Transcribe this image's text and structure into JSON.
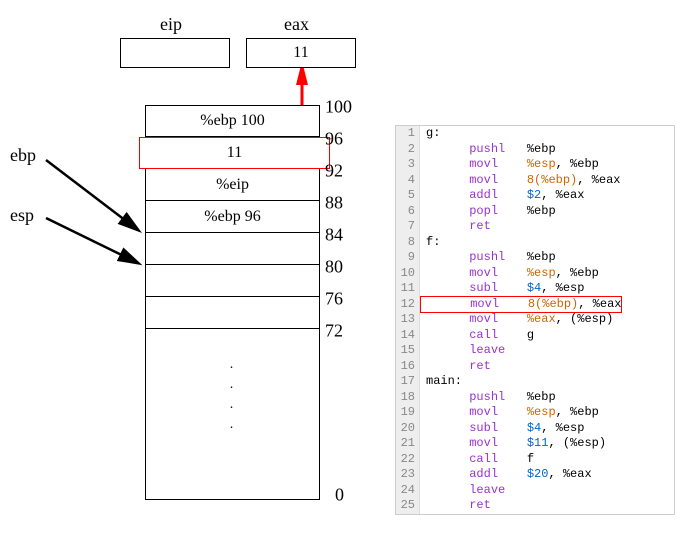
{
  "registers": {
    "eip": {
      "label": "eip",
      "value": ""
    },
    "eax": {
      "label": "eax",
      "value": "11"
    }
  },
  "pointers": {
    "ebp": "ebp",
    "esp": "esp"
  },
  "stack": {
    "addresses": [
      "100",
      "96",
      "92",
      "88",
      "84",
      "80",
      "76",
      "72",
      "0"
    ],
    "cells": [
      {
        "value": "%ebp 100",
        "highlight": false
      },
      {
        "value": "11",
        "highlight": true
      },
      {
        "value": "%eip",
        "highlight": false
      },
      {
        "value": "%ebp 96",
        "highlight": false
      },
      {
        "value": "",
        "highlight": false
      },
      {
        "value": "",
        "highlight": false
      },
      {
        "value": "",
        "highlight": false
      }
    ]
  },
  "code": {
    "highlighted_line": 12,
    "lines": [
      {
        "n": 1,
        "tokens": [
          {
            "t": "g:",
            "c": ""
          }
        ]
      },
      {
        "n": 2,
        "tokens": [
          {
            "t": "      ",
            "c": ""
          },
          {
            "t": "pushl",
            "c": "kw-purple"
          },
          {
            "t": "   %ebp",
            "c": ""
          }
        ]
      },
      {
        "n": 3,
        "tokens": [
          {
            "t": "      ",
            "c": ""
          },
          {
            "t": "movl",
            "c": "kw-purple"
          },
          {
            "t": "    ",
            "c": ""
          },
          {
            "t": "%esp",
            "c": "kw-orange"
          },
          {
            "t": ", %ebp",
            "c": ""
          }
        ]
      },
      {
        "n": 4,
        "tokens": [
          {
            "t": "      ",
            "c": ""
          },
          {
            "t": "movl",
            "c": "kw-purple"
          },
          {
            "t": "    ",
            "c": ""
          },
          {
            "t": "8(%ebp)",
            "c": "kw-orange"
          },
          {
            "t": ", %eax",
            "c": ""
          }
        ]
      },
      {
        "n": 5,
        "tokens": [
          {
            "t": "      ",
            "c": ""
          },
          {
            "t": "addl",
            "c": "kw-purple"
          },
          {
            "t": "    ",
            "c": ""
          },
          {
            "t": "$2",
            "c": "kw-blue"
          },
          {
            "t": ", %eax",
            "c": ""
          }
        ]
      },
      {
        "n": 6,
        "tokens": [
          {
            "t": "      ",
            "c": ""
          },
          {
            "t": "popl",
            "c": "kw-purple"
          },
          {
            "t": "    %ebp",
            "c": ""
          }
        ]
      },
      {
        "n": 7,
        "tokens": [
          {
            "t": "      ",
            "c": ""
          },
          {
            "t": "ret",
            "c": "kw-purple"
          }
        ]
      },
      {
        "n": 8,
        "tokens": [
          {
            "t": "f:",
            "c": ""
          }
        ]
      },
      {
        "n": 9,
        "tokens": [
          {
            "t": "      ",
            "c": ""
          },
          {
            "t": "pushl",
            "c": "kw-purple"
          },
          {
            "t": "   %ebp",
            "c": ""
          }
        ]
      },
      {
        "n": 10,
        "tokens": [
          {
            "t": "      ",
            "c": ""
          },
          {
            "t": "movl",
            "c": "kw-purple"
          },
          {
            "t": "    ",
            "c": ""
          },
          {
            "t": "%esp",
            "c": "kw-orange"
          },
          {
            "t": ", %ebp",
            "c": ""
          }
        ]
      },
      {
        "n": 11,
        "tokens": [
          {
            "t": "      ",
            "c": ""
          },
          {
            "t": "subl",
            "c": "kw-purple"
          },
          {
            "t": "    ",
            "c": ""
          },
          {
            "t": "$4",
            "c": "kw-blue"
          },
          {
            "t": ", %esp",
            "c": ""
          }
        ]
      },
      {
        "n": 12,
        "tokens": [
          {
            "t": "      ",
            "c": ""
          },
          {
            "t": "movl",
            "c": "kw-purple"
          },
          {
            "t": "    ",
            "c": ""
          },
          {
            "t": "8(%ebp)",
            "c": "kw-orange"
          },
          {
            "t": ", %eax",
            "c": ""
          }
        ]
      },
      {
        "n": 13,
        "tokens": [
          {
            "t": "      ",
            "c": ""
          },
          {
            "t": "movl",
            "c": "kw-purple"
          },
          {
            "t": "    ",
            "c": ""
          },
          {
            "t": "%eax",
            "c": "kw-orange"
          },
          {
            "t": ", (%esp)",
            "c": ""
          }
        ]
      },
      {
        "n": 14,
        "tokens": [
          {
            "t": "      ",
            "c": ""
          },
          {
            "t": "call",
            "c": "kw-purple"
          },
          {
            "t": "    g",
            "c": ""
          }
        ]
      },
      {
        "n": 15,
        "tokens": [
          {
            "t": "      ",
            "c": ""
          },
          {
            "t": "leave",
            "c": "kw-purple"
          }
        ]
      },
      {
        "n": 16,
        "tokens": [
          {
            "t": "      ",
            "c": ""
          },
          {
            "t": "ret",
            "c": "kw-purple"
          }
        ]
      },
      {
        "n": 17,
        "tokens": [
          {
            "t": "main:",
            "c": ""
          }
        ]
      },
      {
        "n": 18,
        "tokens": [
          {
            "t": "      ",
            "c": ""
          },
          {
            "t": "pushl",
            "c": "kw-purple"
          },
          {
            "t": "   %ebp",
            "c": ""
          }
        ]
      },
      {
        "n": 19,
        "tokens": [
          {
            "t": "      ",
            "c": ""
          },
          {
            "t": "movl",
            "c": "kw-purple"
          },
          {
            "t": "    ",
            "c": ""
          },
          {
            "t": "%esp",
            "c": "kw-orange"
          },
          {
            "t": ", %ebp",
            "c": ""
          }
        ]
      },
      {
        "n": 20,
        "tokens": [
          {
            "t": "      ",
            "c": ""
          },
          {
            "t": "subl",
            "c": "kw-purple"
          },
          {
            "t": "    ",
            "c": ""
          },
          {
            "t": "$4",
            "c": "kw-blue"
          },
          {
            "t": ", %esp",
            "c": ""
          }
        ]
      },
      {
        "n": 21,
        "tokens": [
          {
            "t": "      ",
            "c": ""
          },
          {
            "t": "movl",
            "c": "kw-purple"
          },
          {
            "t": "    ",
            "c": ""
          },
          {
            "t": "$11",
            "c": "kw-blue"
          },
          {
            "t": ", (%esp)",
            "c": ""
          }
        ]
      },
      {
        "n": 22,
        "tokens": [
          {
            "t": "      ",
            "c": ""
          },
          {
            "t": "call",
            "c": "kw-purple"
          },
          {
            "t": "    f",
            "c": ""
          }
        ]
      },
      {
        "n": 23,
        "tokens": [
          {
            "t": "      ",
            "c": ""
          },
          {
            "t": "addl",
            "c": "kw-purple"
          },
          {
            "t": "    ",
            "c": ""
          },
          {
            "t": "$20",
            "c": "kw-blue"
          },
          {
            "t": ", %eax",
            "c": ""
          }
        ]
      },
      {
        "n": 24,
        "tokens": [
          {
            "t": "      ",
            "c": ""
          },
          {
            "t": "leave",
            "c": "kw-purple"
          }
        ]
      },
      {
        "n": 25,
        "tokens": [
          {
            "t": "      ",
            "c": ""
          },
          {
            "t": "ret",
            "c": "kw-purple"
          }
        ]
      }
    ]
  },
  "colors": {
    "highlight": "#ff0000",
    "arrow_red": "#ff0000",
    "code_bg": "#ffffff",
    "gutter_bg": "#eeeeee"
  }
}
